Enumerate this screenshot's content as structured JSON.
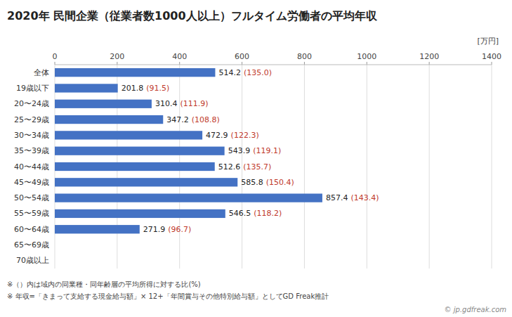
{
  "chart_data": {
    "type": "bar",
    "orientation": "horizontal",
    "title": "2020年 民間企業（従業者数1000人以上）フルタイム労働者の平均年収",
    "xlabel": "[万円]",
    "categories": [
      "全体",
      "19歳以下",
      "20〜24歳",
      "25〜29歳",
      "30〜34歳",
      "35〜39歳",
      "40〜44歳",
      "45〜49歳",
      "50〜54歳",
      "55〜59歳",
      "60〜64歳",
      "65〜69歳",
      "70歳以上"
    ],
    "values": [
      514.2,
      201.8,
      310.4,
      347.2,
      472.9,
      543.9,
      512.6,
      585.8,
      857.4,
      546.5,
      271.9,
      0,
      0
    ],
    "color": "#4472C4",
    "data_labels": true,
    "ratio_labels": {
      "labels": [
        "(135.0)",
        "(91.5)",
        "(111.9)",
        "(108.8)",
        "(122.3)",
        "(119.1)",
        "(135.7)",
        "(150.4)",
        "(143.4)",
        "(118.2)",
        "(96.7)",
        null,
        null
      ],
      "color": "#C0392B"
    },
    "xlim": [
      0,
      1400
    ],
    "xticks": [
      0,
      200,
      400,
      600,
      800,
      1000,
      1200,
      1400
    ],
    "grid": true,
    "annotations": [
      "※（）内は域内の同業種・同年齢層の平均所得に対する比(%)",
      "※ 年収=「きまって支給する現金給与額」× 12+「年間賞与その他特別給与額」としてGD Freak推計",
      "© jp.gdfreak.com"
    ]
  }
}
